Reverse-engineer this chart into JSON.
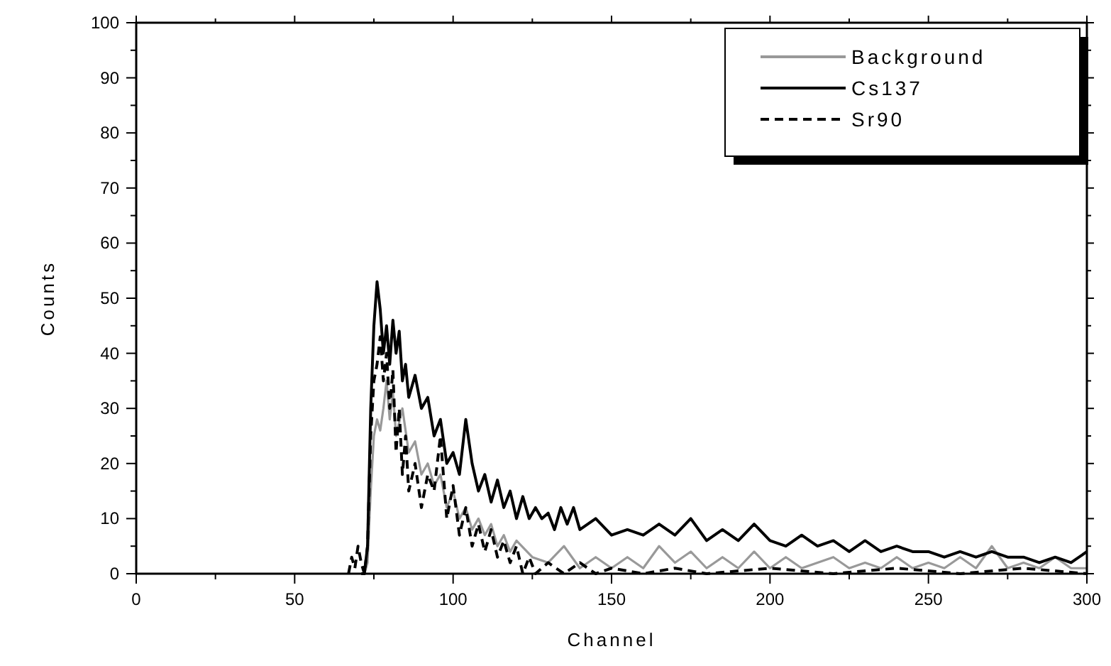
{
  "chart_data": {
    "type": "line",
    "xlabel": "Channel",
    "ylabel": "Counts",
    "xlim": [
      0,
      300
    ],
    "ylim": [
      0,
      100
    ],
    "xticks": [
      0,
      {
        "value": 25,
        "label": null
      },
      50,
      {
        "value": 75,
        "label": null
      },
      100,
      {
        "value": 125,
        "label": null
      },
      150,
      {
        "value": 175,
        "label": null
      },
      200,
      {
        "value": 225,
        "label": null
      },
      250,
      {
        "value": 275,
        "label": null
      },
      300
    ],
    "yticks": [
      0,
      {
        "value": 5,
        "label": null
      },
      10,
      {
        "value": 15,
        "label": null
      },
      20,
      {
        "value": 25,
        "label": null
      },
      30,
      {
        "value": 35,
        "label": null
      },
      40,
      {
        "value": 45,
        "label": null
      },
      50,
      {
        "value": 55,
        "label": null
      },
      60,
      {
        "value": 65,
        "label": null
      },
      70,
      {
        "value": 75,
        "label": null
      },
      80,
      {
        "value": 85,
        "label": null
      },
      90,
      {
        "value": 95,
        "label": null
      },
      100
    ],
    "grid": false,
    "legend": "top right",
    "marker": "none",
    "series": [
      {
        "name": "Background",
        "color": "#999999",
        "line_style": "solid",
        "x": [
          72,
          73,
          74,
          75,
          76,
          77,
          78,
          79,
          80,
          81,
          82,
          84,
          86,
          88,
          90,
          92,
          94,
          96,
          98,
          100,
          102,
          104,
          106,
          108,
          110,
          112,
          114,
          116,
          118,
          120,
          125,
          130,
          135,
          140,
          145,
          150,
          155,
          160,
          165,
          170,
          175,
          180,
          185,
          190,
          195,
          200,
          205,
          210,
          215,
          220,
          225,
          230,
          235,
          240,
          245,
          250,
          255,
          260,
          265,
          270,
          275,
          280,
          285,
          290,
          295,
          300
        ],
        "values": [
          0,
          2,
          15,
          25,
          28,
          26,
          30,
          35,
          28,
          33,
          25,
          30,
          22,
          24,
          18,
          20,
          16,
          18,
          12,
          15,
          10,
          12,
          8,
          10,
          7,
          9,
          5,
          7,
          4,
          6,
          3,
          2,
          5,
          1,
          3,
          1,
          3,
          1,
          5,
          2,
          4,
          1,
          3,
          1,
          4,
          1,
          3,
          1,
          2,
          3,
          1,
          2,
          1,
          3,
          1,
          2,
          1,
          3,
          1,
          5,
          1,
          2,
          1,
          3,
          1,
          1
        ]
      },
      {
        "name": "Cs137",
        "color": "#000000",
        "line_style": "solid",
        "x": [
          71,
          72,
          73,
          74,
          75,
          76,
          77,
          78,
          79,
          80,
          81,
          82,
          83,
          84,
          85,
          86,
          88,
          90,
          92,
          94,
          96,
          98,
          100,
          102,
          104,
          106,
          108,
          110,
          112,
          114,
          116,
          118,
          120,
          122,
          124,
          126,
          128,
          130,
          132,
          134,
          136,
          138,
          140,
          145,
          150,
          155,
          160,
          165,
          170,
          175,
          180,
          185,
          190,
          195,
          200,
          205,
          210,
          215,
          220,
          225,
          230,
          235,
          240,
          245,
          250,
          255,
          260,
          265,
          270,
          275,
          280,
          285,
          290,
          295,
          300
        ],
        "values": [
          0,
          0,
          5,
          30,
          45,
          53,
          48,
          40,
          45,
          38,
          46,
          40,
          44,
          35,
          38,
          32,
          36,
          30,
          32,
          25,
          28,
          20,
          22,
          18,
          28,
          20,
          15,
          18,
          13,
          17,
          12,
          15,
          10,
          14,
          10,
          12,
          10,
          11,
          8,
          12,
          9,
          12,
          8,
          10,
          7,
          8,
          7,
          9,
          7,
          10,
          6,
          8,
          6,
          9,
          6,
          5,
          7,
          5,
          6,
          4,
          6,
          4,
          5,
          4,
          4,
          3,
          4,
          3,
          4,
          3,
          3,
          2,
          3,
          2,
          4
        ]
      },
      {
        "name": "Sr90",
        "color": "#000000",
        "line_style": "dashed",
        "x": [
          67,
          68,
          69,
          70,
          71,
          72,
          73,
          74,
          75,
          76,
          77,
          78,
          79,
          80,
          81,
          82,
          83,
          84,
          85,
          86,
          88,
          90,
          92,
          94,
          96,
          98,
          100,
          102,
          104,
          106,
          108,
          110,
          112,
          114,
          116,
          118,
          120,
          122,
          124,
          126,
          130,
          135,
          140,
          145,
          150,
          160,
          170,
          180,
          200,
          220,
          240,
          260,
          280,
          300
        ],
        "values": [
          0,
          3,
          1,
          5,
          2,
          0,
          5,
          25,
          35,
          38,
          43,
          35,
          40,
          30,
          37,
          22,
          30,
          18,
          25,
          15,
          20,
          12,
          18,
          15,
          25,
          10,
          16,
          7,
          12,
          5,
          9,
          4,
          8,
          3,
          6,
          2,
          5,
          0,
          3,
          0,
          2,
          0,
          2,
          0,
          1,
          0,
          1,
          0,
          1,
          0,
          1,
          0,
          1,
          0
        ]
      }
    ]
  }
}
